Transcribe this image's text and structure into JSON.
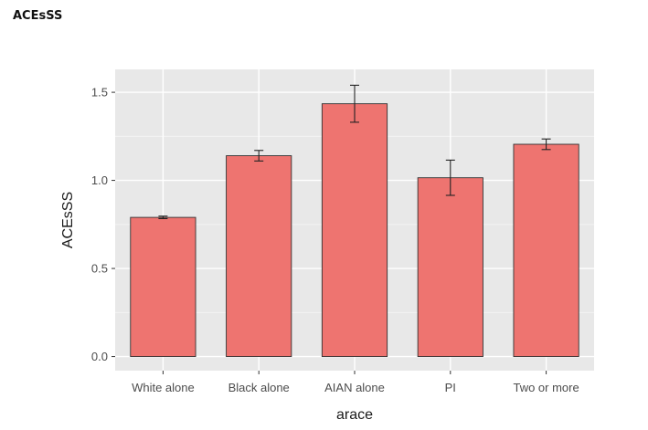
{
  "heading": "ACEsSS",
  "chart_data": {
    "type": "bar",
    "title": "",
    "xlabel": "arace",
    "ylabel": "ACEsSS",
    "categories": [
      "White alone",
      "Black alone",
      "AIAN alone",
      "PI",
      "Two or more"
    ],
    "values": [
      0.79,
      1.14,
      1.435,
      1.015,
      1.205
    ],
    "error_low": [
      0.783,
      1.11,
      1.33,
      0.915,
      1.175
    ],
    "error_high": [
      0.797,
      1.17,
      1.54,
      1.115,
      1.235
    ],
    "ylim": [
      -0.08,
      1.63
    ],
    "yticks": [
      0.0,
      0.5,
      1.0,
      1.5
    ],
    "ytick_labels": [
      "0.0",
      "0.5",
      "1.0",
      "1.5"
    ],
    "grid": true,
    "bar_color": "#ee7470",
    "panel_background": "#e8e8e8"
  }
}
